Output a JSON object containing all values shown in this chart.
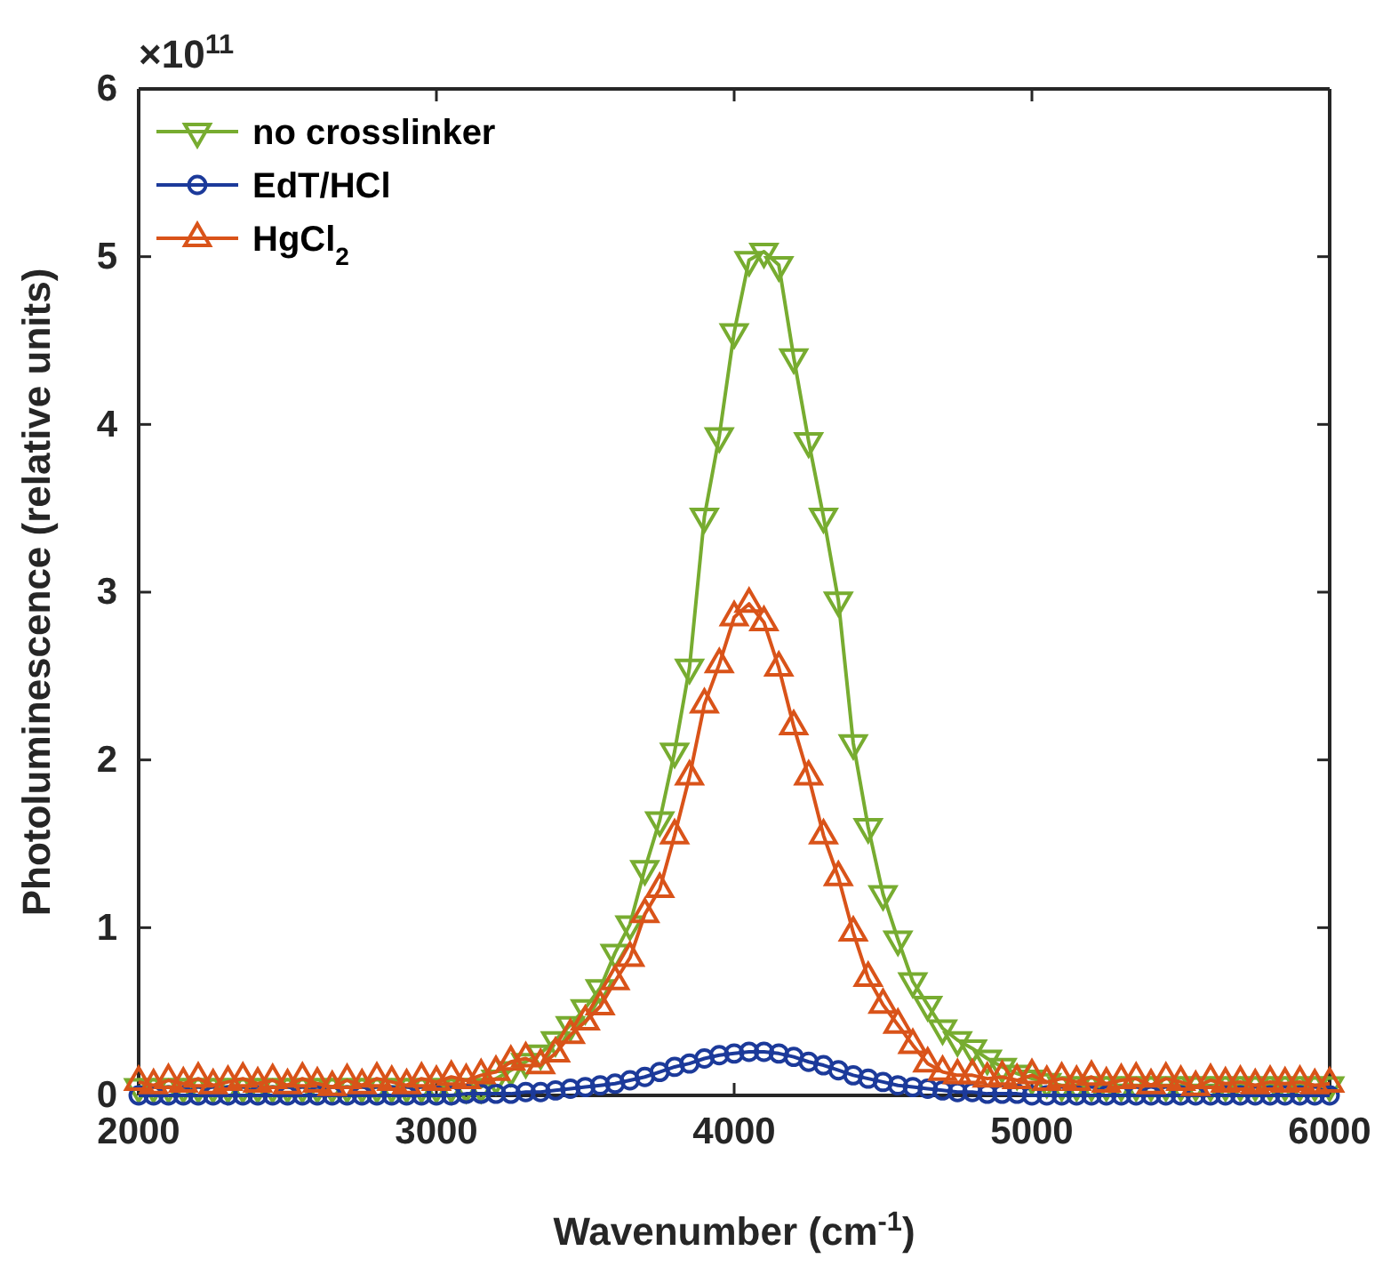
{
  "chart_data": {
    "type": "line",
    "xlabel": "Wavenumber (cm$^{-1}$)",
    "ylabel": "Photoluminescence (relative units)",
    "annotations": [
      "×10$^{11}$"
    ],
    "x": [
      2000,
      2050,
      2100,
      2150,
      2200,
      2250,
      2300,
      2350,
      2400,
      2450,
      2500,
      2550,
      2600,
      2650,
      2700,
      2750,
      2800,
      2850,
      2900,
      2950,
      3000,
      3050,
      3100,
      3150,
      3200,
      3250,
      3300,
      3350,
      3400,
      3450,
      3500,
      3550,
      3600,
      3650,
      3700,
      3750,
      3800,
      3850,
      3900,
      3950,
      4000,
      4050,
      4100,
      4150,
      4200,
      4250,
      4300,
      4350,
      4400,
      4450,
      4500,
      4550,
      4600,
      4650,
      4700,
      4750,
      4800,
      4850,
      4900,
      4950,
      5000,
      5050,
      5100,
      5150,
      5200,
      5250,
      5300,
      5350,
      5400,
      5450,
      5500,
      5550,
      5600,
      5650,
      5700,
      5750,
      5800,
      5850,
      5900,
      5950,
      6000
    ],
    "series": [
      {
        "name": "no crosslinker",
        "color": "#77ac30",
        "marker": "triangle-down",
        "values": [
          0.05,
          0.05,
          0.05,
          0.05,
          0.05,
          0.05,
          0.05,
          0.05,
          0.05,
          0.05,
          0.05,
          0.05,
          0.05,
          0.05,
          0.05,
          0.05,
          0.05,
          0.05,
          0.05,
          0.05,
          0.05,
          0.05,
          0.05,
          0.05,
          0.1,
          0.15,
          0.2,
          0.25,
          0.33,
          0.42,
          0.52,
          0.64,
          0.85,
          1.02,
          1.35,
          1.64,
          2.05,
          2.55,
          3.45,
          3.93,
          4.55,
          4.98,
          5.03,
          4.95,
          4.4,
          3.9,
          3.45,
          2.95,
          2.1,
          1.6,
          1.2,
          0.93,
          0.68,
          0.54,
          0.4,
          0.33,
          0.28,
          0.22,
          0.17,
          0.13,
          0.1,
          0.08,
          0.06,
          0.06,
          0.06,
          0.06,
          0.06,
          0.06,
          0.06,
          0.06,
          0.06,
          0.06,
          0.06,
          0.06,
          0.06,
          0.06,
          0.06,
          0.06,
          0.06,
          0.06,
          0.06
        ]
      },
      {
        "name": "EdT/HCl",
        "color": "#1c3a9a",
        "marker": "circle",
        "values": [
          0,
          0,
          0,
          0,
          0,
          0,
          0,
          0,
          0,
          0,
          0,
          0,
          0,
          0,
          0,
          0,
          0,
          0,
          0,
          0,
          0,
          0,
          0.01,
          0.01,
          0.01,
          0.01,
          0.02,
          0.02,
          0.03,
          0.04,
          0.05,
          0.06,
          0.07,
          0.09,
          0.11,
          0.14,
          0.17,
          0.19,
          0.22,
          0.24,
          0.25,
          0.26,
          0.26,
          0.25,
          0.23,
          0.2,
          0.18,
          0.15,
          0.12,
          0.1,
          0.08,
          0.06,
          0.05,
          0.04,
          0.03,
          0.02,
          0.02,
          0.01,
          0.01,
          0.01,
          0,
          0,
          0,
          0,
          0,
          0,
          0,
          0,
          0,
          0,
          0,
          0,
          0,
          0,
          0,
          0,
          0,
          0,
          0,
          0,
          0
        ]
      },
      {
        "name": "HgCl$_{2}$",
        "color": "#d95319",
        "marker": "triangle",
        "values": [
          0.08,
          0.06,
          0.09,
          0.07,
          0.1,
          0.06,
          0.08,
          0.1,
          0.07,
          0.09,
          0.06,
          0.1,
          0.07,
          0.05,
          0.09,
          0.06,
          0.1,
          0.08,
          0.06,
          0.1,
          0.08,
          0.11,
          0.09,
          0.12,
          0.14,
          0.2,
          0.22,
          0.18,
          0.25,
          0.36,
          0.44,
          0.53,
          0.68,
          0.82,
          1.08,
          1.23,
          1.55,
          1.9,
          2.33,
          2.57,
          2.85,
          2.93,
          2.82,
          2.55,
          2.2,
          1.9,
          1.55,
          1.3,
          0.97,
          0.7,
          0.54,
          0.42,
          0.3,
          0.19,
          0.14,
          0.12,
          0.12,
          0.1,
          0.11,
          0.09,
          0.12,
          0.08,
          0.1,
          0.08,
          0.11,
          0.07,
          0.09,
          0.1,
          0.06,
          0.1,
          0.08,
          0.05,
          0.09,
          0.07,
          0.08,
          0.06,
          0.08,
          0.07,
          0.08,
          0.06,
          0.07
        ]
      }
    ],
    "xlim": [
      2000,
      6000
    ],
    "xticks": [
      2000,
      3000,
      4000,
      5000,
      6000
    ],
    "ylim": [
      0,
      6
    ],
    "yticks": [
      0,
      1,
      2,
      3,
      4,
      5,
      6
    ],
    "legend": "top left",
    "line_style": "solid"
  }
}
